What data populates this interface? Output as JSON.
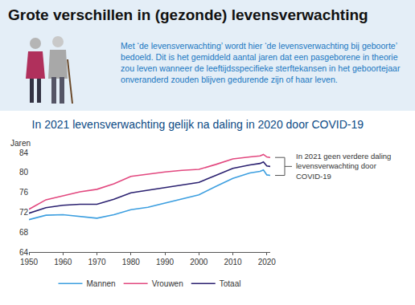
{
  "header": {
    "title": "Grote verschillen in (gezonde) levensverwachting",
    "text": "Met ‘de levensverwachting’ wordt hier ‘de levensverwachting bij geboorte’ bedoeld. Dit is het gemiddeld aantal jaren dat een pasgeborene in theorie zou leven wanneer de leeftijdsspecifieke sterftekansen in het geboortejaar onveranderd zouden blijven gedurende zijn of haar leven."
  },
  "chart_data": {
    "type": "line",
    "title": "In 2021 levensverwachting gelijk na daling in 2020 door COVID-19",
    "y_label": "Jaren",
    "annotation": [
      "In 2021 geen verdere daling",
      "levensverwachting door",
      "COVID-19"
    ],
    "x": [
      1950,
      1955,
      1960,
      1965,
      1970,
      1975,
      1980,
      1985,
      1990,
      1995,
      2000,
      2005,
      2010,
      2015,
      2018,
      2019,
      2020,
      2021
    ],
    "series": [
      {
        "name": "Mannen",
        "color": "#3d9fe0",
        "values": [
          70.5,
          71.4,
          71.5,
          71.1,
          70.8,
          71.5,
          72.5,
          73.0,
          73.8,
          74.6,
          75.5,
          77.2,
          78.8,
          79.9,
          80.2,
          80.5,
          79.5,
          79.4
        ]
      },
      {
        "name": "Vrouwen",
        "color": "#e2487f",
        "values": [
          72.6,
          74.5,
          75.3,
          76.1,
          76.6,
          77.7,
          79.2,
          79.7,
          80.1,
          80.4,
          80.6,
          81.6,
          82.7,
          83.1,
          83.3,
          83.6,
          83.1,
          83.0
        ]
      },
      {
        "name": "Totaal",
        "color": "#2b2170",
        "values": [
          71.8,
          72.9,
          73.4,
          73.6,
          73.6,
          74.6,
          75.9,
          76.4,
          77.0,
          77.5,
          78.0,
          79.4,
          80.8,
          81.5,
          81.8,
          82.1,
          81.3,
          81.2
        ]
      }
    ],
    "xlim": [
      1950,
      2021
    ],
    "xticks": [
      1950,
      1960,
      1970,
      1980,
      1990,
      2000,
      2010,
      2020
    ],
    "ylim": [
      64,
      84
    ],
    "yticks": [
      64,
      68,
      72,
      76,
      80,
      84
    ],
    "grid": false,
    "legend": "bottom"
  }
}
